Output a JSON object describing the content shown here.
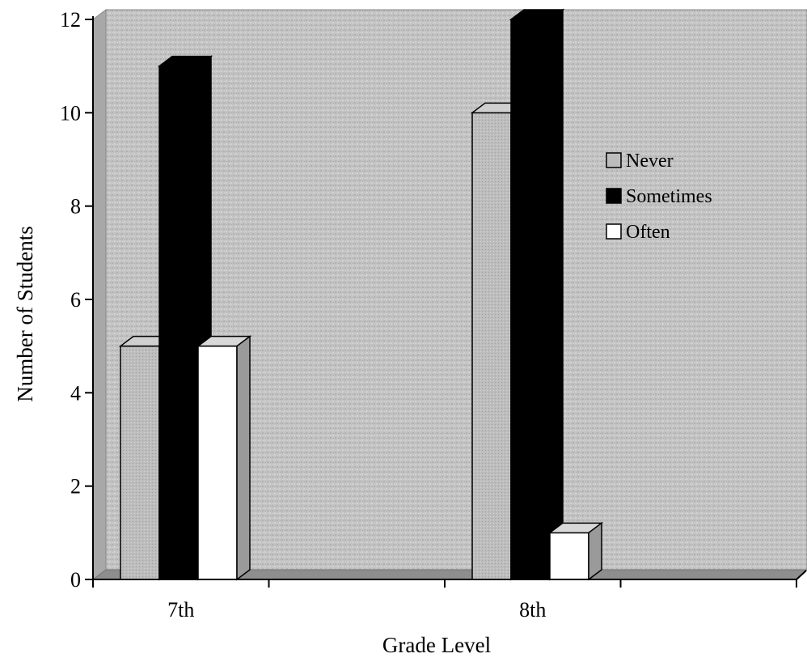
{
  "chart_data": {
    "type": "bar",
    "title": "",
    "xlabel": "Grade Level",
    "ylabel": "Number of Students",
    "categories": [
      "7th",
      "8th"
    ],
    "series": [
      {
        "name": "Never",
        "values": [
          5,
          10
        ]
      },
      {
        "name": "Sometimes",
        "values": [
          11,
          12
        ]
      },
      {
        "name": "Often",
        "values": [
          5,
          1
        ]
      }
    ],
    "ylim": [
      0,
      12
    ],
    "yticks": [
      0,
      2,
      4,
      6,
      8,
      10,
      12
    ],
    "grid": false,
    "legend_position": "right",
    "style": "3d-column"
  },
  "colors": {
    "Never": "#b9b9b9",
    "Sometimes": "#000000",
    "Often": "#ffffff",
    "plot_background": "#c4c4c4"
  }
}
